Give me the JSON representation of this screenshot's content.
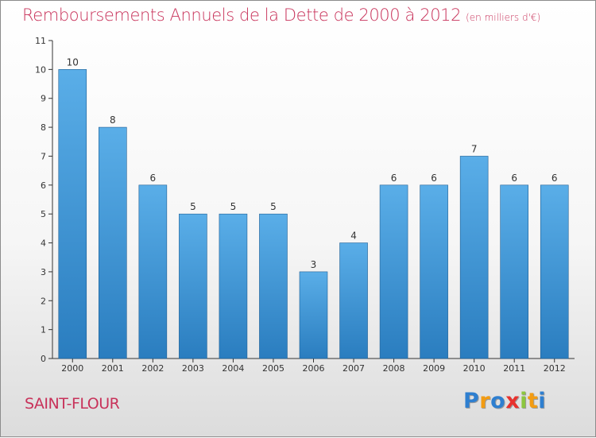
{
  "chart_data": {
    "type": "bar",
    "title": "Remboursements Annuels de la Dette de 2000 à 2012",
    "subtitle": "(en milliers d'€)",
    "categories": [
      "2000",
      "2001",
      "2002",
      "2003",
      "2004",
      "2005",
      "2006",
      "2007",
      "2008",
      "2009",
      "2010",
      "2011",
      "2012"
    ],
    "values": [
      10,
      8,
      6,
      5,
      5,
      5,
      3,
      4,
      6,
      6,
      7,
      6,
      6
    ],
    "ylim": [
      0,
      11
    ],
    "yticks": [
      0,
      1,
      2,
      3,
      4,
      5,
      6,
      7,
      8,
      9,
      10,
      11
    ],
    "grid": false,
    "bar_color_top": "#5aaee8",
    "bar_color_bottom": "#2a7dbf"
  },
  "footer": {
    "commune": "SAINT-FLOUR",
    "brand": [
      "P",
      "r",
      "o",
      "x",
      "i",
      "t",
      "i"
    ],
    "brand_colors": [
      "#2e7fd0",
      "#f39c12",
      "#2e7fd0",
      "#e8322e",
      "#8cc63f",
      "#f39c12",
      "#2e7fd0"
    ]
  },
  "colors": {
    "title": "#c8325a",
    "axis": "#333333"
  }
}
